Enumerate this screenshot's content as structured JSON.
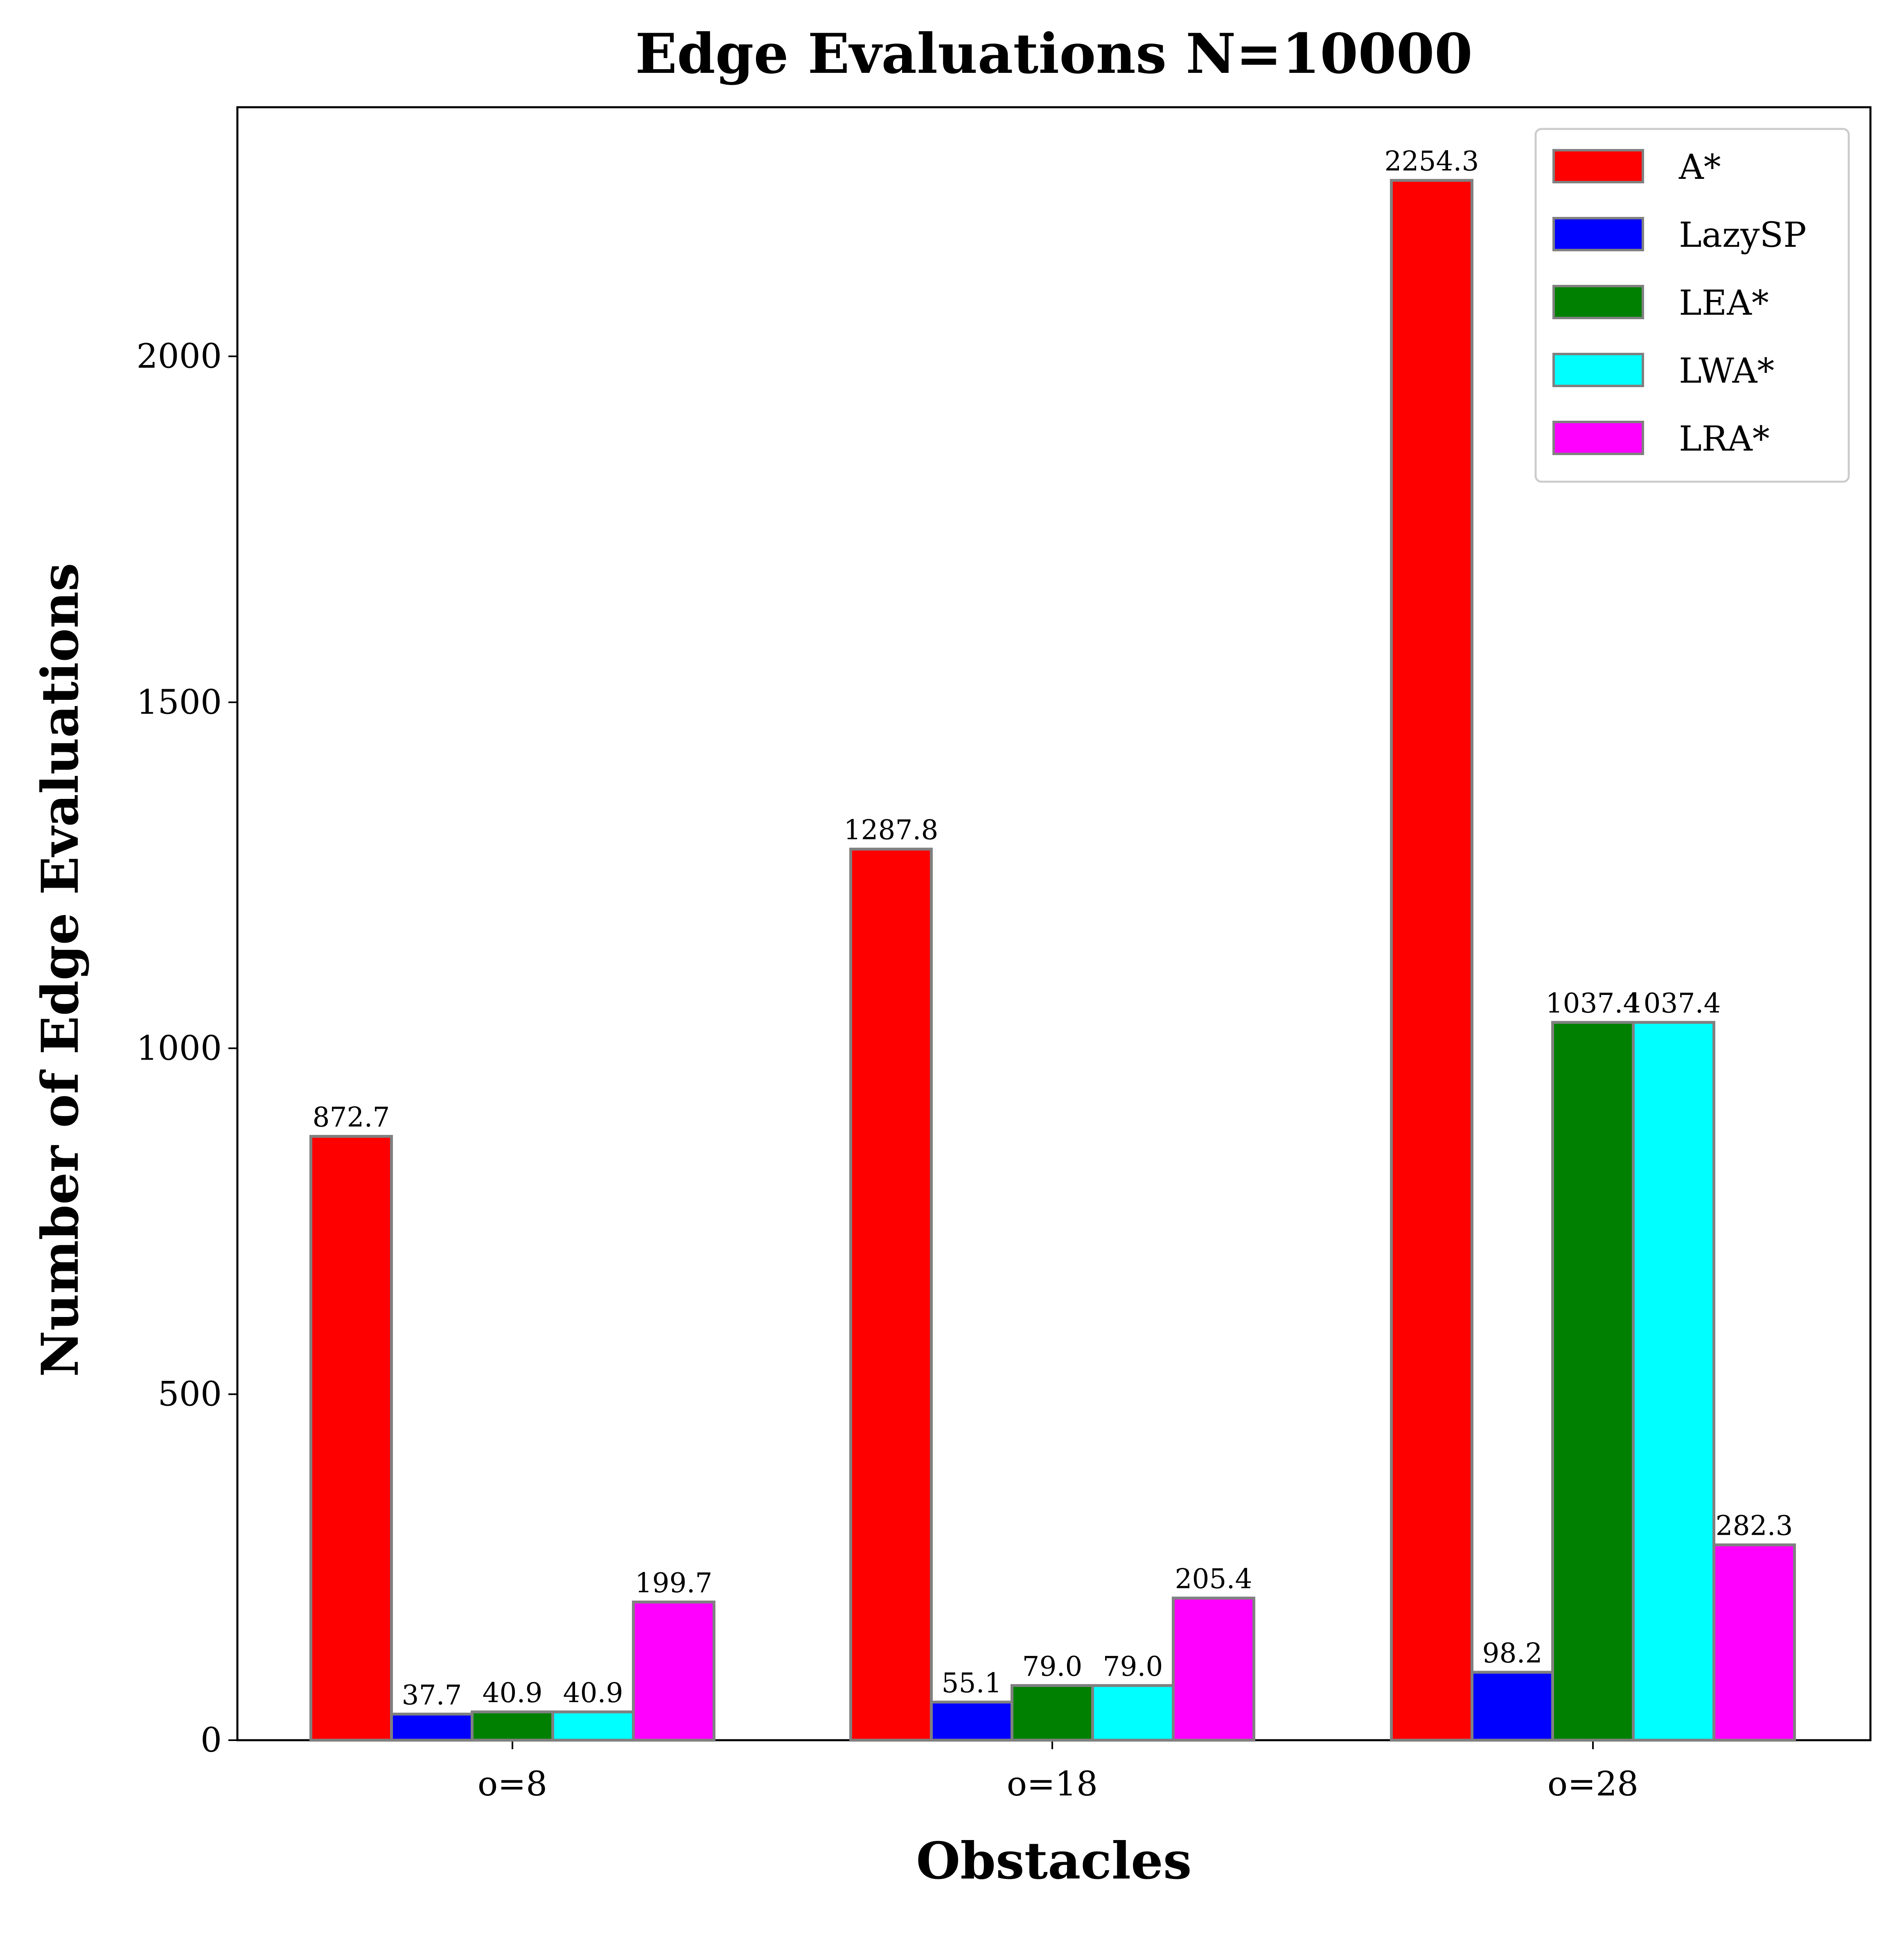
{
  "chart_data": {
    "type": "bar",
    "title": "Edge Evaluations N=10000",
    "xlabel": "Obstacles",
    "ylabel": "Number of Edge Evaluations",
    "categories": [
      "o=8",
      "o=18",
      "o=28"
    ],
    "ylim": [
      0,
      2360
    ],
    "yticks": [
      0,
      500,
      1000,
      1500,
      2000
    ],
    "ytick_labels": [
      "0",
      "500",
      "1000",
      "1500",
      "2000"
    ],
    "grid": false,
    "legend_position": "top-right",
    "series": [
      {
        "name": "A*",
        "color": "#ff0000",
        "values": [
          872.7,
          1287.8,
          2254.3
        ],
        "labels": [
          "872.7",
          "1287.8",
          "2254.3"
        ]
      },
      {
        "name": "LazySP",
        "color": "#0000ff",
        "values": [
          37.7,
          55.1,
          98.2
        ],
        "labels": [
          "37.7",
          "55.1",
          "98.2"
        ]
      },
      {
        "name": "LEA*",
        "color": "#008000",
        "values": [
          40.9,
          79.0,
          1037.4
        ],
        "labels": [
          "40.9",
          "79.0",
          "1037.4"
        ]
      },
      {
        "name": "LWA*",
        "color": "#00ffff",
        "values": [
          40.9,
          79.0,
          1037.4
        ],
        "labels": [
          "40.9",
          "79.0",
          "1037.4"
        ]
      },
      {
        "name": "LRA*",
        "color": "#ff00ff",
        "values": [
          199.7,
          205.4,
          282.3
        ],
        "labels": [
          "199.7",
          "205.4",
          "282.3"
        ]
      }
    ],
    "bar_edge_color": "#808080"
  }
}
